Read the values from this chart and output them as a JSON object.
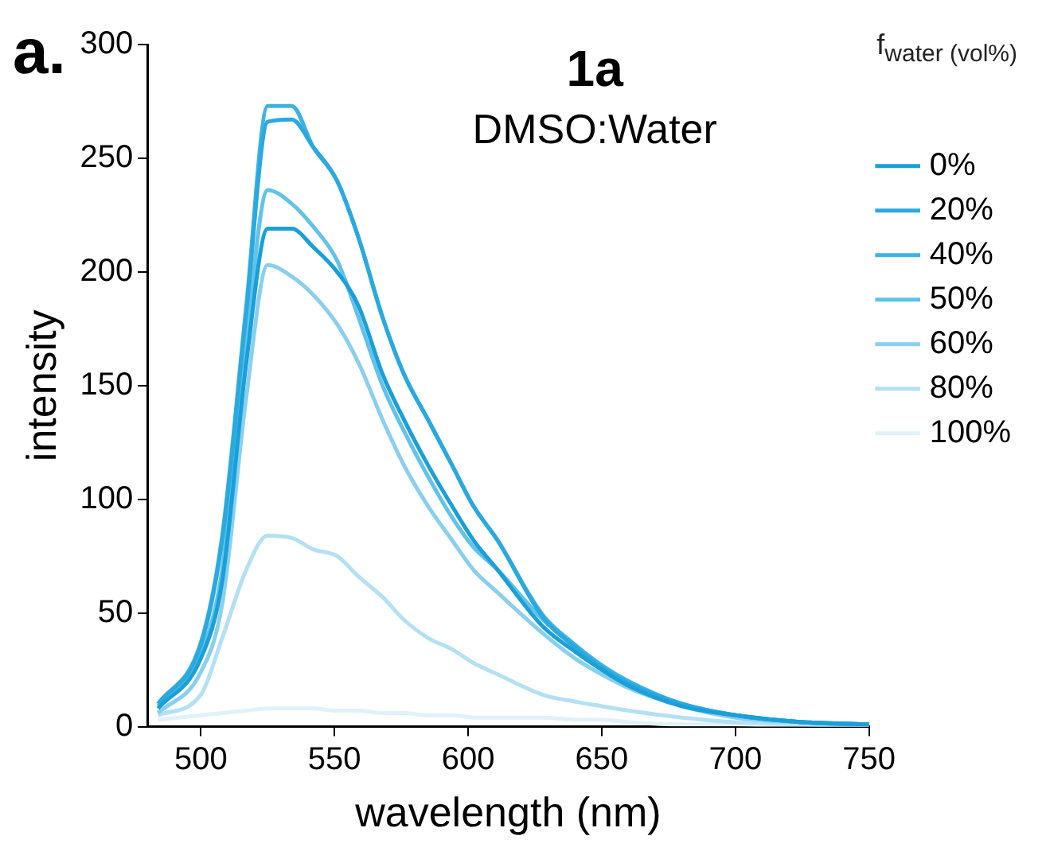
{
  "chart_data": {
    "type": "line",
    "title": "1a",
    "subtitle": "DMSO:Water",
    "xlabel": "wavelength (nm)",
    "ylabel": "intensity",
    "legend_title": "f$_{water (vol%)}$",
    "annotations": [
      "a."
    ],
    "x": [
      484,
      500,
      508,
      517,
      525,
      534,
      542,
      551,
      559,
      568,
      576,
      585,
      594,
      602,
      611,
      628,
      640,
      650,
      660,
      680,
      700,
      725,
      750
    ],
    "series": [
      {
        "name": "0%",
        "color": "#1a9fd9",
        "values": [
          8,
          30,
          64,
          160,
          219,
          219,
          211,
          200,
          185,
          155,
          135,
          115,
          97,
          82,
          69,
          44,
          33,
          25,
          18,
          9,
          5,
          2,
          1
        ]
      },
      {
        "name": "20%",
        "color": "#2aa9df",
        "values": [
          10,
          36,
          82,
          182,
          266,
          267,
          255,
          240,
          215,
          180,
          155,
          135,
          115,
          97,
          82,
          48,
          35,
          26,
          19,
          10,
          5,
          2,
          1
        ]
      },
      {
        "name": "40%",
        "color": "#3db3e4",
        "values": [
          10,
          37,
          84,
          185,
          273,
          273,
          255,
          240,
          215,
          180,
          155,
          135,
          115,
          97,
          82,
          49,
          36,
          27,
          20,
          10,
          5,
          2,
          1
        ]
      },
      {
        "name": "50%",
        "color": "#62c2ea",
        "values": [
          9,
          32,
          69,
          170,
          236,
          230,
          220,
          205,
          180,
          150,
          130,
          110,
          92,
          79,
          69,
          47,
          35,
          26,
          19,
          10,
          5,
          2,
          1
        ]
      },
      {
        "name": "60%",
        "color": "#8ad0ee",
        "values": [
          6,
          24,
          54,
          145,
          203,
          198,
          190,
          177,
          160,
          135,
          115,
          97,
          82,
          69,
          59,
          41,
          30,
          23,
          17,
          9,
          4,
          2,
          1
        ]
      },
      {
        "name": "80%",
        "color": "#b4e0f3",
        "values": [
          5,
          14,
          39,
          69,
          84,
          83,
          78,
          75,
          66,
          57,
          47,
          39,
          34,
          28,
          23,
          14,
          11,
          9,
          7,
          4,
          2,
          1,
          0
        ]
      },
      {
        "name": "100%",
        "color": "#e0f1f9",
        "values": [
          3,
          5,
          6,
          7,
          8,
          8,
          8,
          7,
          7,
          6,
          6,
          5,
          5,
          4,
          4,
          4,
          3,
          3,
          2,
          1,
          1,
          0,
          0
        ]
      }
    ],
    "xlim": [
      480,
      750
    ],
    "xticks": [
      500,
      550,
      600,
      650,
      700,
      750
    ],
    "ylim": [
      0,
      300
    ],
    "yticks": [
      0,
      50,
      100,
      150,
      200,
      250,
      300
    ],
    "grid": false,
    "legend": "top right",
    "marker": "none",
    "line_style": "solid"
  }
}
